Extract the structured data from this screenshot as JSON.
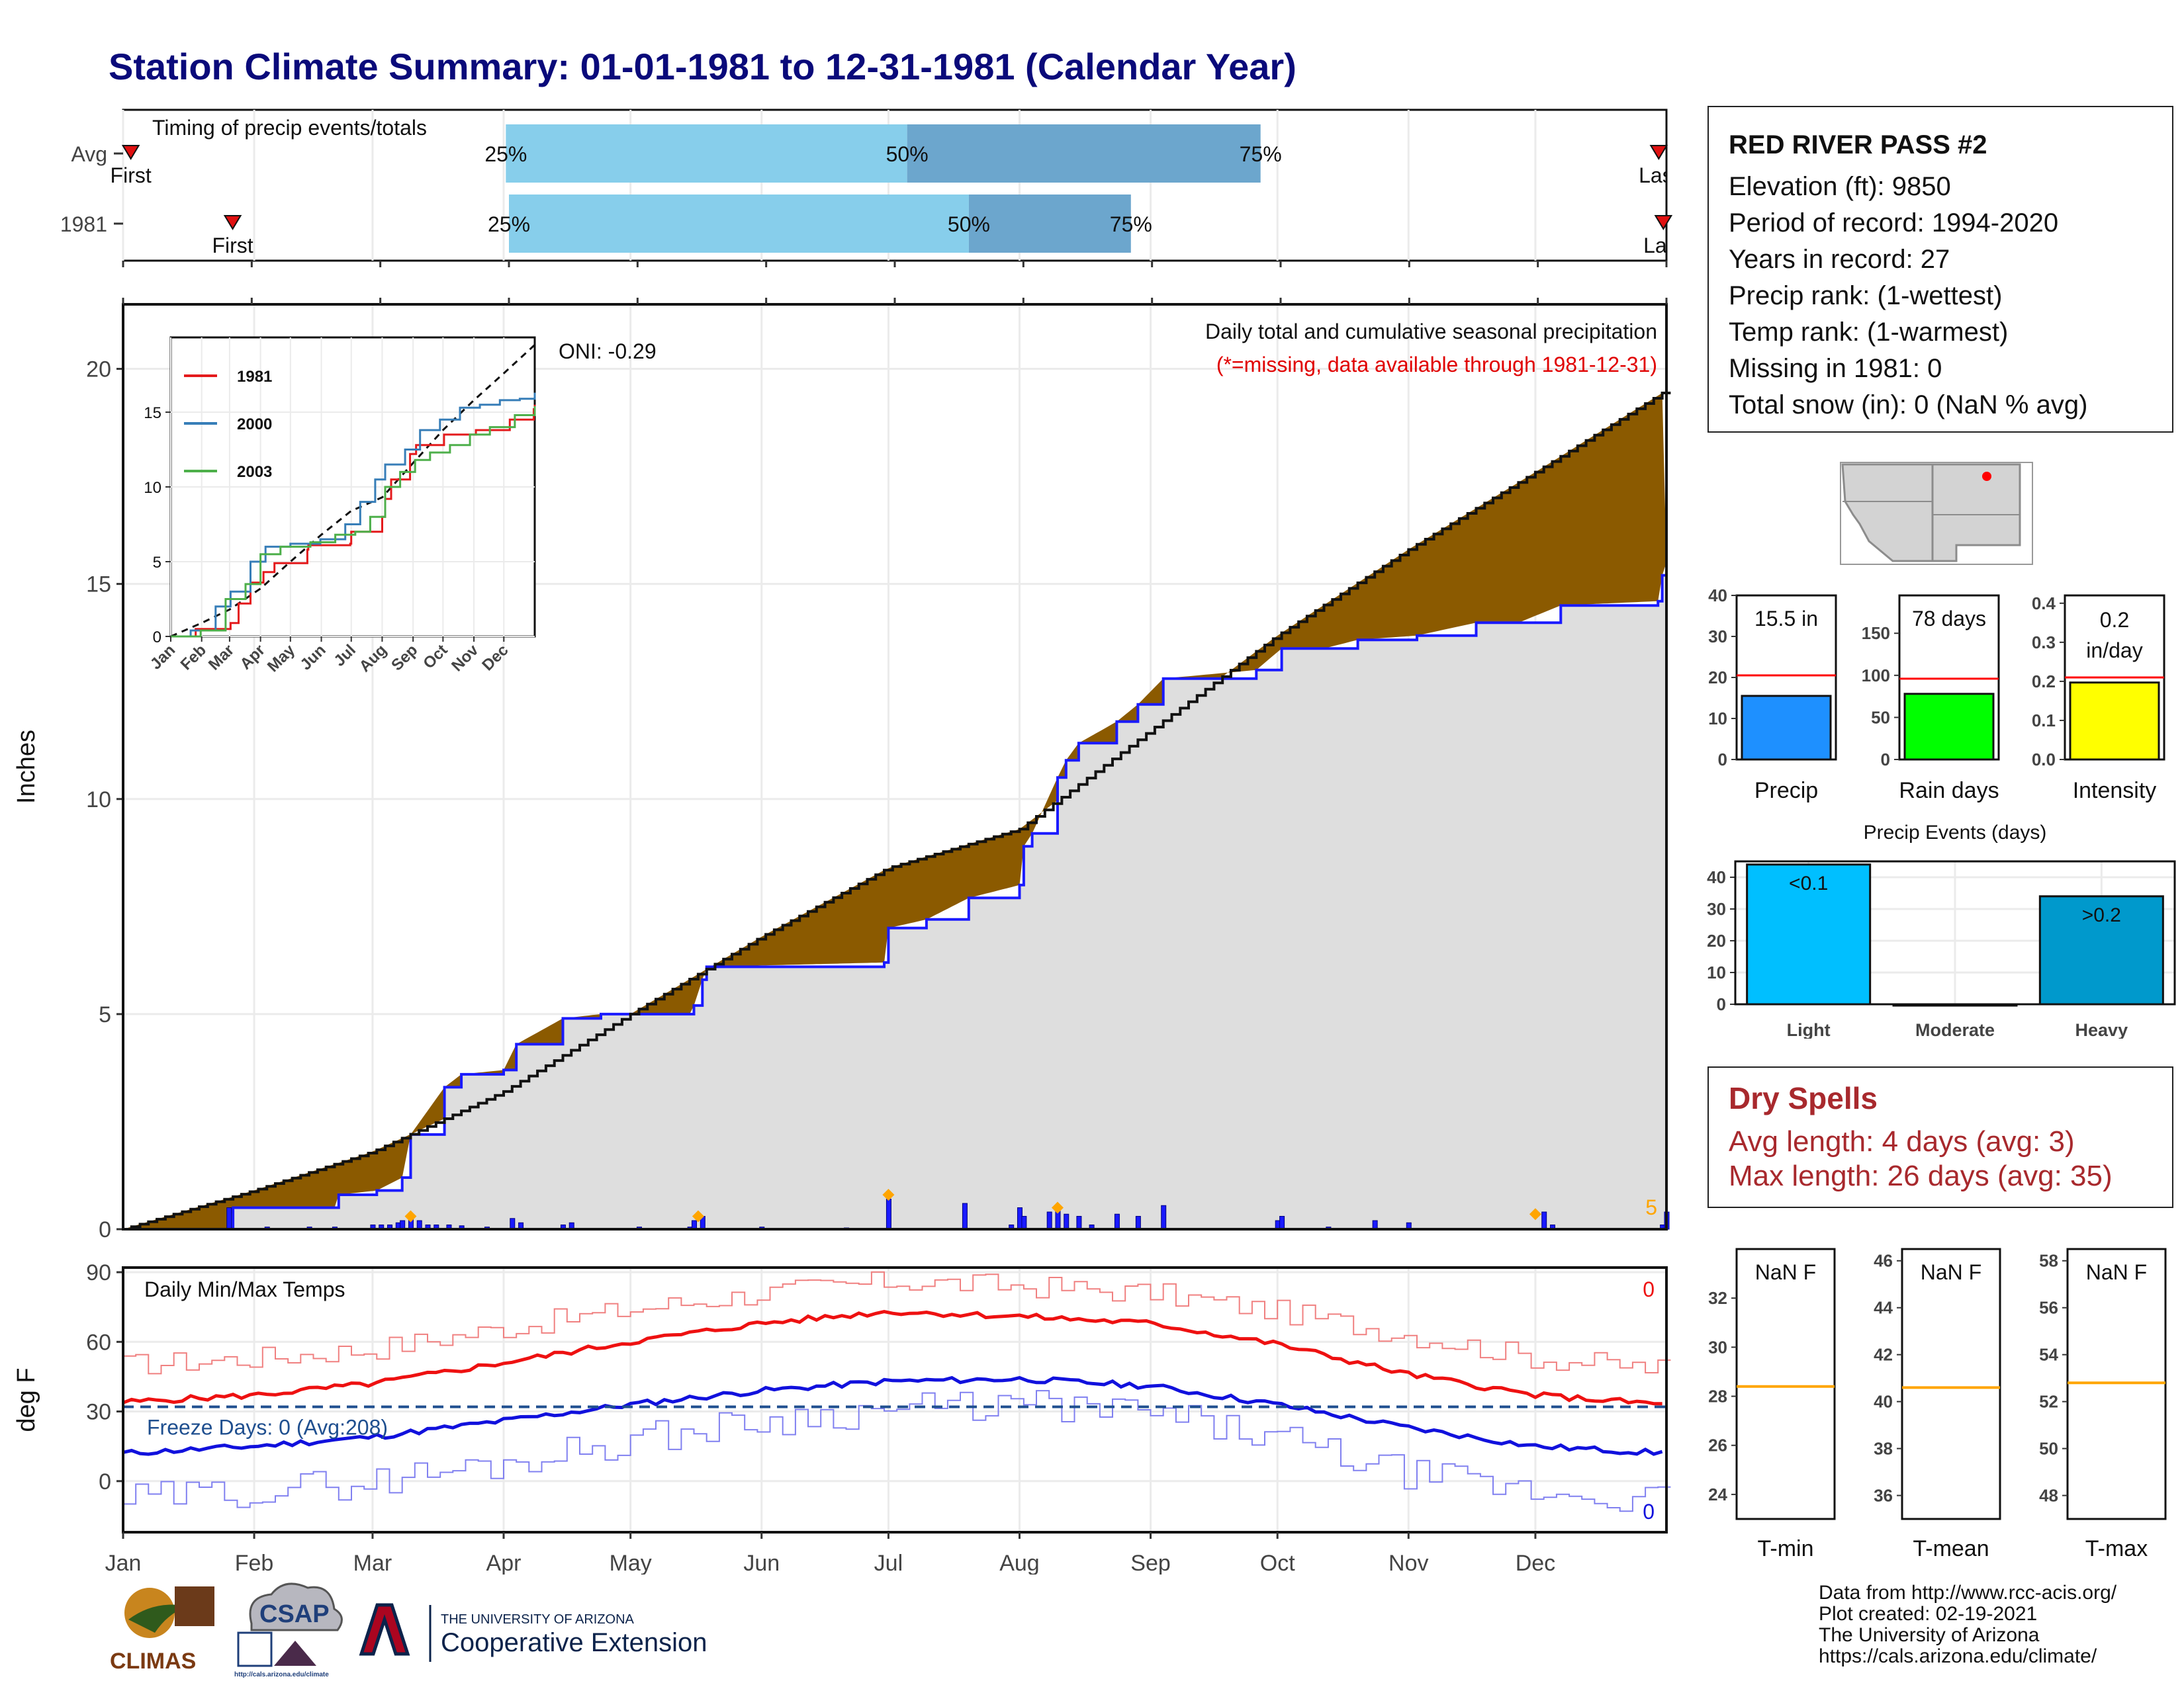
{
  "title": "Station Climate Summary: 01-01-1981 to 12-31-1981 (Calendar Year)",
  "timing_panel": {
    "label": "Timing of precip events/totals",
    "rows": [
      {
        "name": "Avg",
        "first_label": "First",
        "last_label": "Last",
        "q25": 0.248,
        "q50": 0.508,
        "q75": 0.737,
        "first": 0.005,
        "last": 0.995
      },
      {
        "name": "1981",
        "first_label": "First",
        "last_label": "Last",
        "q25": 0.25,
        "q50": 0.548,
        "q75": 0.653,
        "first": 0.071,
        "last": 0.998
      }
    ],
    "q25_label": "25%",
    "q50_label": "50%",
    "q75_label": "75%"
  },
  "station": {
    "name": "RED RIVER PASS #2",
    "elevation": "Elevation (ft): 9850",
    "period": "Period of record: 1994-2020",
    "years": "Years in record: 27",
    "precip_rank": "Precip rank:  (1-wettest)",
    "temp_rank": "Temp rank:  (1-warmest)",
    "missing": "Missing in 1981: 0",
    "snow": "Total snow (in): 0 (NaN % avg)"
  },
  "main_chart": {
    "ylabel": "Inches",
    "title_line": "Daily total and cumulative seasonal precipitation",
    "missing_note": "(*=missing, data available through 1981-12-31)",
    "oni": "ONI: -0.29",
    "corner_count": "5",
    "ylim": [
      0,
      21.5
    ],
    "yticks": [
      0,
      5,
      10,
      15,
      20
    ],
    "months": [
      "Jan",
      "Feb",
      "Mar",
      "Apr",
      "May",
      "Jun",
      "Jul",
      "Aug",
      "Sep",
      "Oct",
      "Nov",
      "Dec"
    ],
    "avg_cumulative": [
      [
        0,
        0
      ],
      [
        31,
        0.9
      ],
      [
        59,
        1.8
      ],
      [
        90,
        3.2
      ],
      [
        120,
        5.0
      ],
      [
        151,
        6.8
      ],
      [
        181,
        8.4
      ],
      [
        212,
        9.3
      ],
      [
        243,
        11.6
      ],
      [
        273,
        13.8
      ],
      [
        304,
        15.8
      ],
      [
        334,
        17.6
      ],
      [
        365,
        19.5
      ]
    ],
    "year_cumulative": [
      [
        0,
        0
      ],
      [
        25,
        0.03
      ],
      [
        26,
        0.5
      ],
      [
        50,
        0.5
      ],
      [
        51,
        0.8
      ],
      [
        60,
        0.9
      ],
      [
        66,
        1.2
      ],
      [
        68,
        2.2
      ],
      [
        76,
        3.3
      ],
      [
        80,
        3.6
      ],
      [
        90,
        3.7
      ],
      [
        93,
        4.3
      ],
      [
        104,
        4.9
      ],
      [
        113,
        5.0
      ],
      [
        122,
        5.0
      ],
      [
        134,
        5.0
      ],
      [
        135,
        5.2
      ],
      [
        137,
        5.8
      ],
      [
        138,
        6.1
      ],
      [
        180,
        6.2
      ],
      [
        181,
        7.0
      ],
      [
        190,
        7.2
      ],
      [
        200,
        7.7
      ],
      [
        212,
        8.0
      ],
      [
        213,
        8.9
      ],
      [
        215,
        9.2
      ],
      [
        221,
        10.5
      ],
      [
        223,
        10.9
      ],
      [
        226,
        11.3
      ],
      [
        235,
        11.8
      ],
      [
        240,
        12.2
      ],
      [
        246,
        12.8
      ],
      [
        268,
        13.0
      ],
      [
        274,
        13.5
      ],
      [
        284,
        13.5
      ],
      [
        292,
        13.7
      ],
      [
        306,
        13.8
      ],
      [
        320,
        14.1
      ],
      [
        330,
        14.1
      ],
      [
        340,
        14.5
      ],
      [
        363,
        14.6
      ],
      [
        364,
        15.2
      ],
      [
        365,
        15.5
      ]
    ],
    "daily_bars": [
      [
        25,
        0.5
      ],
      [
        34,
        0.05
      ],
      [
        44,
        0.05
      ],
      [
        50,
        0.05
      ],
      [
        59,
        0.1
      ],
      [
        61,
        0.1
      ],
      [
        63,
        0.1
      ],
      [
        65,
        0.15
      ],
      [
        66,
        0.2
      ],
      [
        68,
        0.25
      ],
      [
        70,
        0.2
      ],
      [
        72,
        0.1
      ],
      [
        74,
        0.1
      ],
      [
        77,
        0.1
      ],
      [
        80,
        0.08
      ],
      [
        86,
        0.05
      ],
      [
        92,
        0.25
      ],
      [
        94,
        0.15
      ],
      [
        104,
        0.1
      ],
      [
        106,
        0.15
      ],
      [
        122,
        0.05
      ],
      [
        134,
        0.05
      ],
      [
        135,
        0.2
      ],
      [
        137,
        0.3
      ],
      [
        151,
        0.05
      ],
      [
        171,
        0.03
      ],
      [
        181,
        0.7
      ],
      [
        199,
        0.6
      ],
      [
        210,
        0.1
      ],
      [
        212,
        0.5
      ],
      [
        213,
        0.3
      ],
      [
        219,
        0.4
      ],
      [
        221,
        0.55
      ],
      [
        223,
        0.35
      ],
      [
        226,
        0.3
      ],
      [
        229,
        0.1
      ],
      [
        235,
        0.35
      ],
      [
        240,
        0.3
      ],
      [
        246,
        0.55
      ],
      [
        273,
        0.2
      ],
      [
        274,
        0.3
      ],
      [
        285,
        0.05
      ],
      [
        296,
        0.2
      ],
      [
        304,
        0.15
      ],
      [
        336,
        0.4
      ],
      [
        338,
        0.1
      ],
      [
        364,
        0.1
      ],
      [
        365,
        0.4
      ]
    ],
    "event_markers": [
      [
        68,
        0.3
      ],
      [
        136,
        0.3
      ],
      [
        181,
        0.8
      ],
      [
        221,
        0.5
      ],
      [
        334,
        0.35
      ]
    ]
  },
  "inset": {
    "ylim": [
      0,
      20
    ],
    "yticks": [
      0,
      5,
      10,
      15
    ],
    "months": [
      "Jan",
      "Feb",
      "Mar",
      "Apr",
      "May",
      "Jun",
      "Jul",
      "Aug",
      "Sep",
      "Oct",
      "Nov",
      "Dec"
    ],
    "series": [
      {
        "name": "1981",
        "color": "#e41a1c",
        "points": [
          [
            0,
            0
          ],
          [
            25,
            0.5
          ],
          [
            60,
            0.9
          ],
          [
            68,
            2.2
          ],
          [
            80,
            3.6
          ],
          [
            93,
            4.3
          ],
          [
            104,
            4.9
          ],
          [
            137,
            5.8
          ],
          [
            138,
            6.1
          ],
          [
            180,
            6.2
          ],
          [
            181,
            7.0
          ],
          [
            212,
            8.0
          ],
          [
            215,
            9.2
          ],
          [
            221,
            10.5
          ],
          [
            240,
            12.2
          ],
          [
            246,
            12.8
          ],
          [
            274,
            13.5
          ],
          [
            306,
            13.8
          ],
          [
            340,
            14.5
          ],
          [
            364,
            15.2
          ],
          [
            365,
            15.5
          ]
        ]
      },
      {
        "name": "2000",
        "color": "#377eb8",
        "points": [
          [
            0,
            0
          ],
          [
            20,
            0.4
          ],
          [
            45,
            2.0
          ],
          [
            60,
            3.0
          ],
          [
            80,
            5.0
          ],
          [
            95,
            6.0
          ],
          [
            120,
            6.2
          ],
          [
            150,
            6.5
          ],
          [
            175,
            7.5
          ],
          [
            190,
            9.0
          ],
          [
            205,
            10.5
          ],
          [
            215,
            11.5
          ],
          [
            235,
            12.5
          ],
          [
            250,
            13.8
          ],
          [
            270,
            14.5
          ],
          [
            290,
            15.3
          ],
          [
            310,
            15.5
          ],
          [
            330,
            15.8
          ],
          [
            350,
            15.9
          ],
          [
            365,
            16.3
          ]
        ]
      },
      {
        "name": "2003",
        "color": "#4daf4a",
        "points": [
          [
            0,
            0
          ],
          [
            30,
            0.4
          ],
          [
            55,
            2.5
          ],
          [
            75,
            3.5
          ],
          [
            90,
            5.5
          ],
          [
            110,
            6.0
          ],
          [
            140,
            6.3
          ],
          [
            165,
            6.8
          ],
          [
            185,
            7.0
          ],
          [
            200,
            8.0
          ],
          [
            215,
            10.0
          ],
          [
            230,
            11.0
          ],
          [
            245,
            11.8
          ],
          [
            260,
            12.3
          ],
          [
            280,
            12.8
          ],
          [
            300,
            13.5
          ],
          [
            320,
            14.0
          ],
          [
            345,
            14.8
          ],
          [
            365,
            15.4
          ]
        ]
      }
    ],
    "avg_points": [
      [
        0,
        0
      ],
      [
        31,
        0.9
      ],
      [
        59,
        1.8
      ],
      [
        90,
        3.2
      ],
      [
        120,
        5.0
      ],
      [
        151,
        6.8
      ],
      [
        181,
        8.4
      ],
      [
        212,
        9.3
      ],
      [
        243,
        11.6
      ],
      [
        273,
        13.8
      ],
      [
        304,
        15.8
      ],
      [
        334,
        17.6
      ],
      [
        365,
        19.5
      ]
    ]
  },
  "temp_chart": {
    "ylabel": "deg F",
    "label": "Daily Min/Max Temps",
    "freeze": "Freeze Days: 0 (Avg:208)",
    "max_count": "0",
    "min_count": "0",
    "ylim": [
      -22,
      92
    ],
    "yticks": [
      0,
      30,
      60,
      90
    ],
    "freeze_line": 32,
    "avg_max": [
      [
        0,
        34
      ],
      [
        31,
        37
      ],
      [
        59,
        42
      ],
      [
        90,
        51
      ],
      [
        120,
        60
      ],
      [
        151,
        68
      ],
      [
        181,
        73
      ],
      [
        212,
        71
      ],
      [
        243,
        68
      ],
      [
        273,
        59
      ],
      [
        304,
        46
      ],
      [
        334,
        37
      ],
      [
        365,
        33
      ]
    ],
    "avg_min": [
      [
        0,
        12
      ],
      [
        31,
        15
      ],
      [
        59,
        19
      ],
      [
        90,
        26
      ],
      [
        120,
        33
      ],
      [
        151,
        39
      ],
      [
        181,
        43
      ],
      [
        212,
        44
      ],
      [
        243,
        41
      ],
      [
        273,
        33
      ],
      [
        304,
        23
      ],
      [
        334,
        15
      ],
      [
        365,
        12
      ]
    ],
    "max_envelope": [
      [
        0,
        50
      ],
      [
        31,
        53
      ],
      [
        59,
        57
      ],
      [
        90,
        66
      ],
      [
        120,
        74
      ],
      [
        151,
        81
      ],
      [
        181,
        86
      ],
      [
        212,
        84
      ],
      [
        243,
        81
      ],
      [
        273,
        73
      ],
      [
        304,
        63
      ],
      [
        334,
        53
      ],
      [
        365,
        48
      ]
    ],
    "min_envelope": [
      [
        0,
        -8
      ],
      [
        31,
        -4
      ],
      [
        59,
        0
      ],
      [
        90,
        8
      ],
      [
        120,
        18
      ],
      [
        151,
        26
      ],
      [
        181,
        31
      ],
      [
        212,
        33
      ],
      [
        243,
        29
      ],
      [
        273,
        18
      ],
      [
        304,
        3
      ],
      [
        334,
        -5
      ],
      [
        365,
        -8
      ]
    ]
  },
  "summary_bars": [
    {
      "label": "Precip",
      "value_label": "15.5 in",
      "value": 15.5,
      "avg": 20.5,
      "ymax": 40,
      "ticks": [
        0,
        10,
        20,
        30,
        40
      ],
      "color": "#1e90ff"
    },
    {
      "label": "Rain days",
      "value_label": "78 days",
      "value": 78,
      "avg": 96,
      "ymax": 195,
      "ticks": [
        0,
        50,
        100,
        150
      ],
      "color": "#00ff00"
    },
    {
      "label": "Intensity",
      "value_label": "0.2 in/day",
      "value": 0.197,
      "avg": 0.21,
      "ymax": 0.42,
      "ticks": [
        0.0,
        0.1,
        0.2,
        0.3,
        0.4
      ],
      "color": "#ffff00"
    }
  ],
  "precip_events": {
    "title": "Precip Events (days)",
    "ymax": 45,
    "ticks": [
      0,
      10,
      20,
      30,
      40
    ],
    "bars": [
      {
        "label": "Light",
        "value": 44,
        "bar_label": "<0.1",
        "color": "#00bfff"
      },
      {
        "label": "Moderate",
        "value": 0,
        "bar_label": "",
        "color": "#00bfff"
      },
      {
        "label": "Heavy",
        "value": 34,
        "bar_label": ">0.2",
        "color": "#0099cc"
      }
    ]
  },
  "dry_spells": {
    "title": "Dry Spells",
    "avg_length": "Avg length: 4 days (avg: 3)",
    "max_length": "Max length: 26 days (avg: 35)"
  },
  "temp_bars": [
    {
      "label": "T-min",
      "value_label": "NaN F",
      "ticks": [
        24,
        26,
        28,
        30,
        32
      ],
      "ymin": 23,
      "ymax": 34,
      "avg": 28.4
    },
    {
      "label": "T-mean",
      "value_label": "NaN F",
      "ticks": [
        36,
        38,
        40,
        42,
        44,
        46
      ],
      "ymin": 35,
      "ymax": 46.5,
      "avg": 40.6
    },
    {
      "label": "T-max",
      "value_label": "NaN F",
      "ticks": [
        48,
        50,
        52,
        54,
        56,
        58
      ],
      "ymin": 47,
      "ymax": 58.5,
      "avg": 52.8
    }
  ],
  "footer": {
    "line1": "Data from http://www.rcc-acis.org/",
    "line2": "Plot created: 02-19-2021",
    "line3": "The University of Arizona",
    "line4": "https://cals.arizona.edu/climate/"
  },
  "logos": {
    "climas": "CLIMAS",
    "csap": "CSAP",
    "csap_url": "http://cals.arizona.edu/climate",
    "ua_small": "THE UNIVERSITY OF ARIZONA",
    "ua_big": "Cooperative Extension"
  }
}
